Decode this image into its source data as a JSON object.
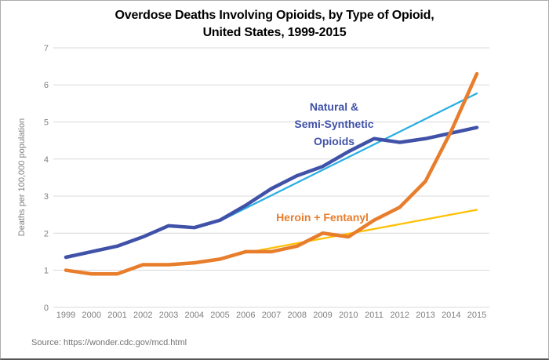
{
  "title": {
    "line1": "Overdose Deaths Involving Opioids, by Type of Opioid,",
    "line2": "United States, 1999-2015"
  },
  "source": "Source: https://wonder.cdc.gov/mcd.html",
  "y_axis": {
    "title": "Deaths per 100,000 population",
    "ticks": [
      0,
      1,
      2,
      3,
      4,
      5,
      6,
      7
    ]
  },
  "annotations": {
    "natural_label": {
      "lines": [
        "Natural &",
        "Semi-Synthetic",
        "Opioids"
      ],
      "color": "#4052A8"
    },
    "heroin_label": {
      "text": "Heroin + Fentanyl",
      "color": "#E87D2B"
    }
  },
  "colors": {
    "natural_line": "#4052A8",
    "heroin_line": "#E87D2B",
    "natural_trendline": "#29AEE4",
    "heroin_trendline": "#FFC000",
    "gridline": "#D9D9D9",
    "tick_text": "#7F7F7F",
    "title_text": "#000000",
    "source_text": "#737373"
  },
  "chart_data": {
    "type": "line",
    "title": "Overdose Deaths Involving Opioids, by Type of Opioid, United States, 1999-2015",
    "xlabel": "",
    "ylabel": "Deaths per 100,000 population",
    "ylim": [
      0,
      7
    ],
    "grid": true,
    "legend": "direct-labels",
    "x": [
      1999,
      2000,
      2001,
      2002,
      2003,
      2004,
      2005,
      2006,
      2007,
      2008,
      2009,
      2010,
      2011,
      2012,
      2013,
      2014,
      2015
    ],
    "series": [
      {
        "name": "Natural & Semi-Synthetic Opioids",
        "color": "#4052A8",
        "trend": false,
        "values": [
          1.35,
          1.5,
          1.65,
          1.9,
          2.2,
          2.15,
          2.35,
          2.75,
          3.2,
          3.55,
          3.8,
          4.2,
          4.55,
          4.45,
          4.55,
          4.7,
          4.85
        ]
      },
      {
        "name": "Heroin + Fentanyl",
        "color": "#E87D2B",
        "trend": false,
        "values": [
          1.0,
          0.9,
          0.9,
          1.15,
          1.15,
          1.2,
          1.3,
          1.5,
          1.5,
          1.65,
          2.0,
          1.9,
          2.35,
          2.7,
          3.4,
          4.75,
          6.3
        ]
      },
      {
        "name": "Natural & Semi-Synthetic Opioids trendline",
        "color": "#29AEE4",
        "trend": true,
        "points": {
          "x": [
            2005,
            2015
          ],
          "y": [
            2.33,
            5.77
          ]
        }
      },
      {
        "name": "Heroin + Fentanyl trendline",
        "color": "#FFC000",
        "trend": true,
        "points": {
          "x": [
            2006,
            2015
          ],
          "y": [
            1.47,
            2.63
          ]
        }
      }
    ]
  }
}
